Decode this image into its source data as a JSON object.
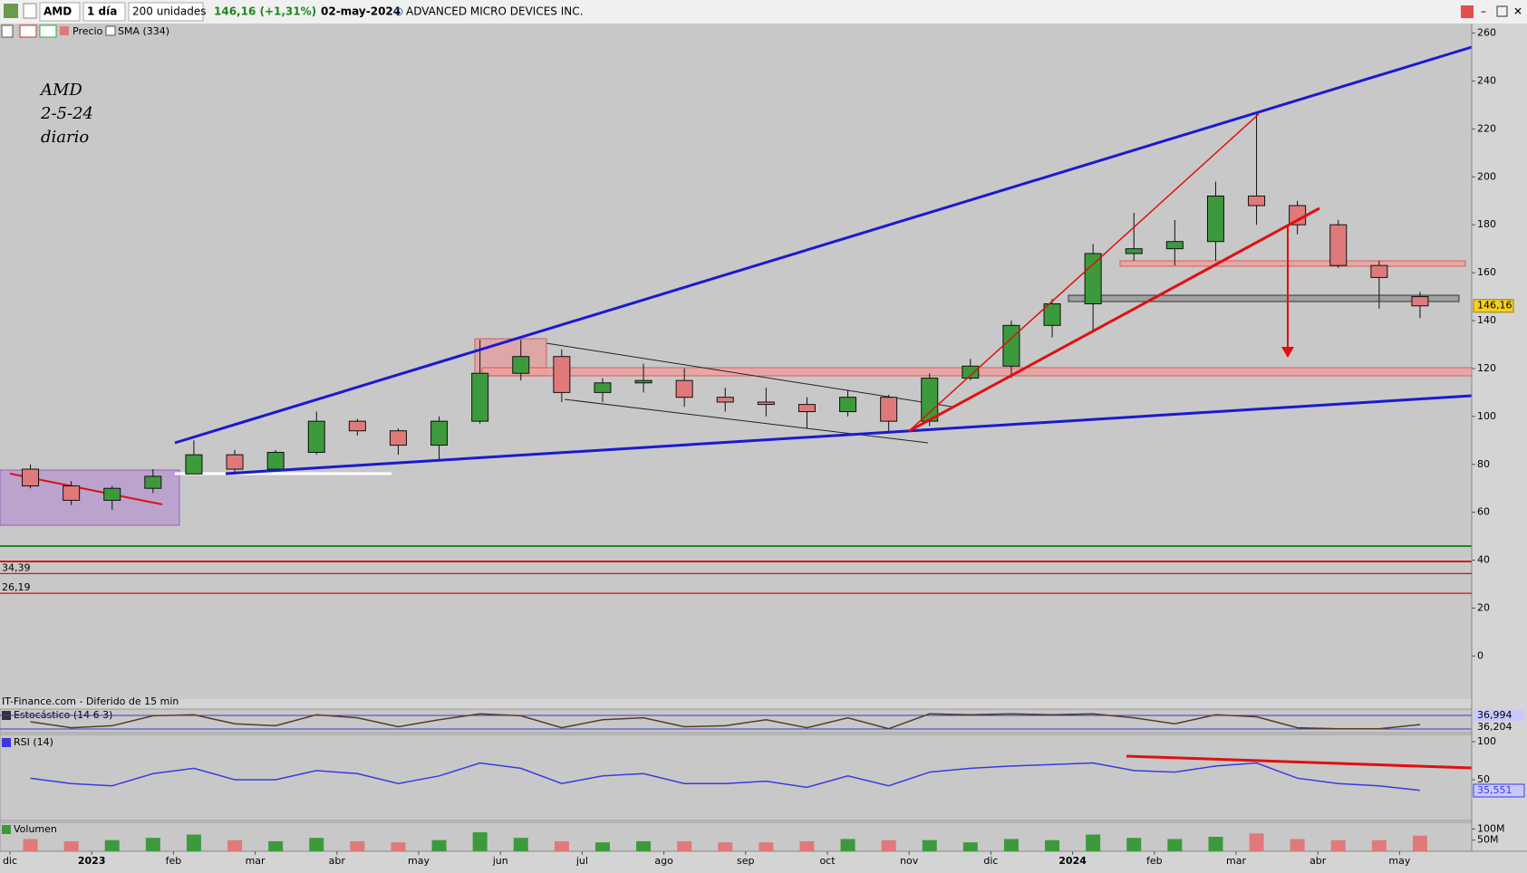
{
  "toolbar": {
    "symbol": "AMD",
    "interval": "1 día",
    "units": "200 unidades",
    "quote": "146,16 (+1,31%)",
    "date": "02-may-2024",
    "name": "ADVANCED MICRO DEVICES INC."
  },
  "legend": {
    "price": "Precio",
    "sma": "SMA (334)"
  },
  "annotation": [
    "AMD",
    "2-5-24",
    "diario"
  ],
  "source_note": "IT-Finance.com - Diferido de 15 min",
  "chart_data": {
    "type": "candlestick",
    "categories": [
      "dic",
      null,
      "2023",
      null,
      "feb",
      null,
      "mar",
      null,
      "abr",
      null,
      "may",
      null,
      "jun",
      null,
      "jul",
      null,
      "ago",
      null,
      "sep",
      null,
      "oct",
      null,
      "nov",
      null,
      "dic",
      null,
      "2024",
      null,
      "feb",
      null,
      "mar",
      null,
      "abr",
      null,
      "may"
    ],
    "open": [
      78,
      71,
      65,
      70,
      76,
      84,
      78,
      85,
      98,
      94,
      88,
      98,
      118,
      125,
      110,
      114,
      115,
      108,
      106,
      105,
      102,
      108,
      98,
      116,
      121,
      138,
      147,
      168,
      170,
      173,
      192,
      188,
      180,
      163,
      150
    ],
    "high": [
      80,
      73,
      71,
      78,
      90,
      86,
      86,
      102,
      99,
      95,
      100,
      132,
      132,
      128,
      116,
      122,
      120,
      112,
      112,
      108,
      111,
      109,
      118,
      124,
      140,
      149,
      172,
      185,
      182,
      198,
      227,
      190,
      182,
      165,
      152
    ],
    "low": [
      70,
      63,
      61,
      68,
      76,
      76,
      77,
      84,
      92,
      84,
      82,
      97,
      115,
      106,
      106,
      110,
      104,
      102,
      100,
      95,
      100,
      93,
      96,
      115,
      116,
      133,
      135,
      165,
      163,
      165,
      180,
      176,
      162,
      145,
      141
    ],
    "close": [
      71,
      65,
      70,
      75,
      84,
      78,
      85,
      98,
      94,
      88,
      98,
      118,
      125,
      110,
      114,
      115,
      108,
      106,
      105,
      102,
      108,
      98,
      116,
      121,
      138,
      147,
      168,
      170,
      173,
      192,
      188,
      180,
      163,
      158,
      146.16
    ],
    "up_color": "#3c9a3c",
    "down_color": "#e07a7a",
    "ylim": [
      -18,
      264
    ],
    "yticks": [
      0,
      20,
      40,
      60,
      80,
      100,
      120,
      140,
      160,
      180,
      200,
      220,
      240,
      260
    ],
    "last": {
      "value": 146.16,
      "label": "146,16"
    },
    "levels": [
      {
        "value": 34.39,
        "label": "34,39"
      },
      {
        "value": 26.19,
        "label": "26,19"
      }
    ],
    "stochastic": {
      "title": "Estocástico (14 6 3)",
      "values": [
        50,
        20,
        30,
        80,
        85,
        40,
        30,
        85,
        70,
        25,
        60,
        90,
        80,
        20,
        60,
        70,
        25,
        30,
        60,
        20,
        70,
        15,
        90,
        85,
        90,
        85,
        90,
        70,
        40,
        85,
        75,
        20,
        15,
        15,
        36
      ],
      "ylim": [
        0,
        100
      ],
      "readouts": [
        "36,994",
        "36,204"
      ],
      "color": "#5a3a2a"
    },
    "rsi": {
      "title": "RSI (14)",
      "values": [
        52,
        45,
        42,
        58,
        65,
        50,
        50,
        62,
        58,
        45,
        55,
        72,
        65,
        45,
        55,
        58,
        45,
        45,
        48,
        40,
        55,
        42,
        60,
        65,
        68,
        70,
        72,
        62,
        60,
        68,
        72,
        52,
        45,
        42,
        36
      ],
      "ylim": [
        0,
        100
      ],
      "yticks": [
        100,
        50
      ],
      "readout": "35,551",
      "color": "#3a3ae0"
    },
    "volume": {
      "title": "Volumen",
      "values": [
        55,
        45,
        50,
        60,
        75,
        50,
        45,
        60,
        45,
        40,
        50,
        85,
        60,
        45,
        40,
        45,
        45,
        40,
        40,
        45,
        55,
        50,
        50,
        40,
        55,
        50,
        75,
        60,
        55,
        65,
        80,
        55,
        50,
        50,
        70
      ],
      "ylim": [
        0,
        130
      ],
      "yticks": [
        {
          "value": 100,
          "label": "100M"
        },
        {
          "value": 50,
          "label": "50M"
        }
      ]
    }
  }
}
